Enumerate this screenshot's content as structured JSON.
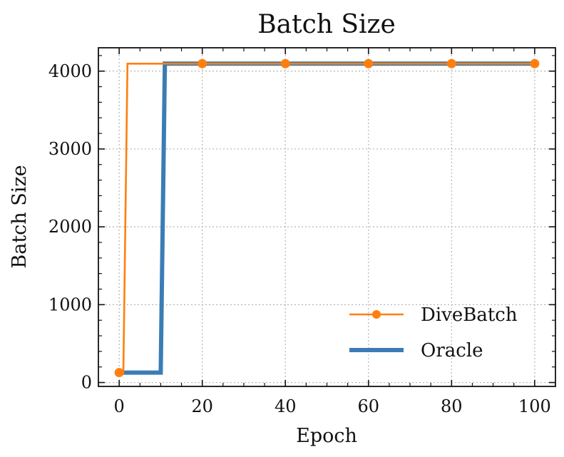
{
  "chart_data": {
    "type": "line",
    "title": "Batch Size",
    "xlabel": "Epoch",
    "ylabel": "Batch Size",
    "xlim": [
      -5,
      105
    ],
    "ylim": [
      -50,
      4300
    ],
    "xticks": [
      0,
      20,
      40,
      60,
      80,
      100
    ],
    "xtick_labels": [
      "0",
      "20",
      "40",
      "60",
      "80",
      "100"
    ],
    "yticks": [
      0,
      1000,
      2000,
      3000,
      4000
    ],
    "ytick_labels": [
      "0",
      "1000",
      "2000",
      "3000",
      "4000"
    ],
    "grid": true,
    "legend_position": "lower-right",
    "series": [
      {
        "name": "DiveBatch",
        "color": "#ff7f0e",
        "marker": "circle",
        "x": [
          0,
          1,
          2,
          100
        ],
        "y": [
          128,
          128,
          4096,
          4096
        ],
        "marker_x": [
          0,
          20,
          40,
          60,
          80,
          100
        ],
        "marker_y": [
          128,
          4096,
          4096,
          4096,
          4096,
          4096
        ]
      },
      {
        "name": "Oracle",
        "color": "#3a7db5",
        "marker": "none",
        "x": [
          0,
          10,
          11,
          100
        ],
        "y": [
          128,
          128,
          4096,
          4096
        ]
      }
    ]
  }
}
